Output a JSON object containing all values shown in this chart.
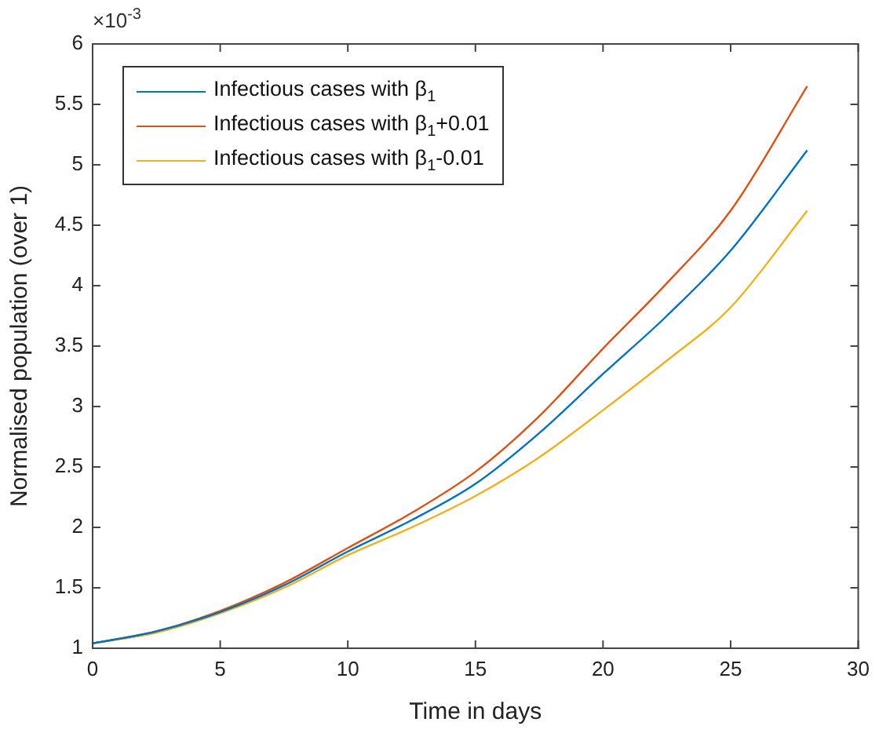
{
  "chart_data": {
    "type": "line",
    "xlabel": "Time in days",
    "ylabel": "Normalised population (over 1)",
    "x": [
      0,
      2.5,
      5,
      7.5,
      10,
      12.5,
      15,
      17.5,
      20,
      22.5,
      25,
      28
    ],
    "series": [
      {
        "name": "Infectious cases with β$_{1}$",
        "color": "#0072bd",
        "values": [
          1.04,
          1.14,
          1.3,
          1.52,
          1.8,
          2.06,
          2.36,
          2.78,
          3.27,
          3.75,
          4.29,
          5.12
        ]
      },
      {
        "name": "Infectious cases with β$_{1}$+0.01",
        "color": "#d95319",
        "values": [
          1.04,
          1.14,
          1.31,
          1.54,
          1.83,
          2.12,
          2.46,
          2.92,
          3.48,
          4.02,
          4.62,
          5.65
        ]
      },
      {
        "name": "Infectious cases with β$_{1}$-0.01",
        "color": "#edb120",
        "values": [
          1.04,
          1.13,
          1.29,
          1.5,
          1.77,
          2.0,
          2.26,
          2.58,
          2.97,
          3.38,
          3.82,
          4.62
        ]
      }
    ],
    "xlim": [
      0,
      30
    ],
    "xticks": [
      0,
      5,
      10,
      15,
      20,
      25,
      30
    ],
    "ylim": [
      1,
      6
    ],
    "yticks": [
      1,
      1.5,
      2,
      2.5,
      3,
      3.5,
      4,
      4.5,
      5,
      5.5,
      6
    ],
    "annotations": [
      "×10$^{-3}$"
    ],
    "legend": "top left",
    "marker": "none",
    "line_style": "solid"
  }
}
